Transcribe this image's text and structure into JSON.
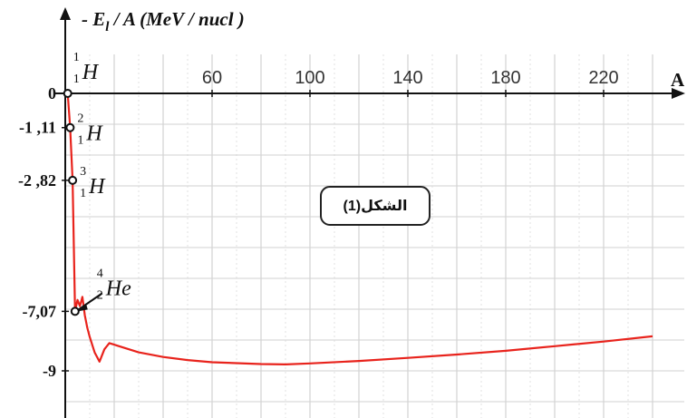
{
  "chart_data": {
    "type": "line",
    "title": "",
    "ylabel": "- E_l / A (MeV / nucl )",
    "ylabel_parts": {
      "minus": "- ",
      "symbol": "E",
      "subscript": "l",
      "rest": " / A (MeV  / nucl )"
    },
    "xlabel": "A",
    "xlim": [
      0,
      240
    ],
    "ylim": [
      -10,
      0
    ],
    "x_ticks": [
      60,
      100,
      140,
      180,
      220
    ],
    "y_ticks": [
      {
        "value": 0,
        "label": "0"
      },
      {
        "value": -1.11,
        "label": "-1 ,11"
      },
      {
        "value": -2.82,
        "label": "-2 ,82"
      },
      {
        "value": -7.07,
        "label": "-7,07"
      },
      {
        "value": -9,
        "label": "-9"
      }
    ],
    "grid": true,
    "series": [
      {
        "color": "#e8231c",
        "points": [
          [
            1,
            0
          ],
          [
            2,
            -1.11
          ],
          [
            3,
            -2.82
          ],
          [
            4,
            -7.07
          ],
          [
            5,
            -6.7
          ],
          [
            6,
            -6.9
          ],
          [
            7,
            -6.6
          ],
          [
            8,
            -7.2
          ],
          [
            9,
            -7.6
          ],
          [
            10,
            -7.9
          ],
          [
            12,
            -8.4
          ],
          [
            14,
            -8.7
          ],
          [
            16,
            -8.3
          ],
          [
            18,
            -8.1
          ],
          [
            20,
            -8.15
          ],
          [
            30,
            -8.4
          ],
          [
            40,
            -8.55
          ],
          [
            50,
            -8.65
          ],
          [
            60,
            -8.72
          ],
          [
            70,
            -8.75
          ],
          [
            80,
            -8.78
          ],
          [
            90,
            -8.79
          ],
          [
            100,
            -8.76
          ],
          [
            120,
            -8.68
          ],
          [
            140,
            -8.58
          ],
          [
            160,
            -8.47
          ],
          [
            180,
            -8.35
          ],
          [
            200,
            -8.2
          ],
          [
            220,
            -8.05
          ],
          [
            240,
            -7.88
          ]
        ]
      }
    ],
    "annotations": [
      {
        "x": 1,
        "y": 0,
        "mass": "1",
        "charge": "1",
        "symbol": "H"
      },
      {
        "x": 2,
        "y": -1.11,
        "mass": "2",
        "charge": "1",
        "symbol": "H"
      },
      {
        "x": 3,
        "y": -2.82,
        "mass": "3",
        "charge": "1",
        "symbol": "H"
      },
      {
        "x": 4,
        "y": -7.07,
        "mass": "4",
        "charge": "2",
        "symbol": "He"
      }
    ],
    "figure_label": "الشكل(1)"
  }
}
